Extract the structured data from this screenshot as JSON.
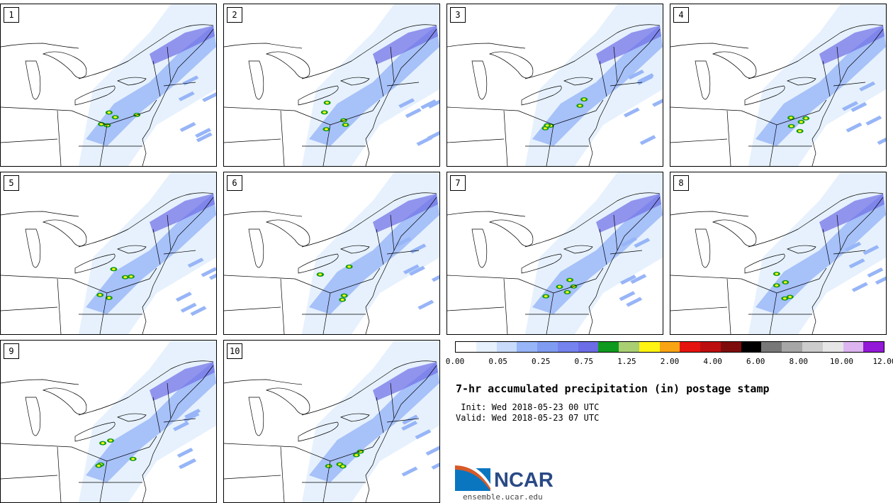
{
  "panels": [
    {
      "label": "1"
    },
    {
      "label": "2"
    },
    {
      "label": "3"
    },
    {
      "label": "4"
    },
    {
      "label": "5"
    },
    {
      "label": "6"
    },
    {
      "label": "7"
    },
    {
      "label": "8"
    },
    {
      "label": "9"
    },
    {
      "label": "10"
    }
  ],
  "legend": {
    "colors": [
      "#ffffff",
      "#e6f1fd",
      "#c8dbfb",
      "#97b5f7",
      "#7f9cf2",
      "#7583ee",
      "#6c6ce6",
      "#0e9a1e",
      "#a9cf72",
      "#fff413",
      "#f9a413",
      "#e5140f",
      "#bc0e0e",
      "#7f0c0c",
      "#000000",
      "#787878",
      "#a6a6a6",
      "#cccccc",
      "#e6e6e6",
      "#dcb4f0",
      "#9318d7"
    ],
    "labels": [
      "0.00",
      "0.05",
      "0.25",
      "0.75",
      "1.25",
      "2.00",
      "4.00",
      "6.00",
      "8.00",
      "10.00",
      "12.00"
    ]
  },
  "title": "7-hr accumulated precipitation (in) postage stamp",
  "init": " Init: Wed 2018-05-23 00 UTC",
  "valid": "Valid: Wed 2018-05-23 07 UTC",
  "logo_text": "NCAR",
  "site": "ensemble.ucar.edu",
  "colors": {
    "light_precip": "#e6f1fd",
    "mod_precip": "#97b5f7",
    "heavy_precip": "#6c6ce6",
    "logo_blue": "#2a4a86"
  }
}
